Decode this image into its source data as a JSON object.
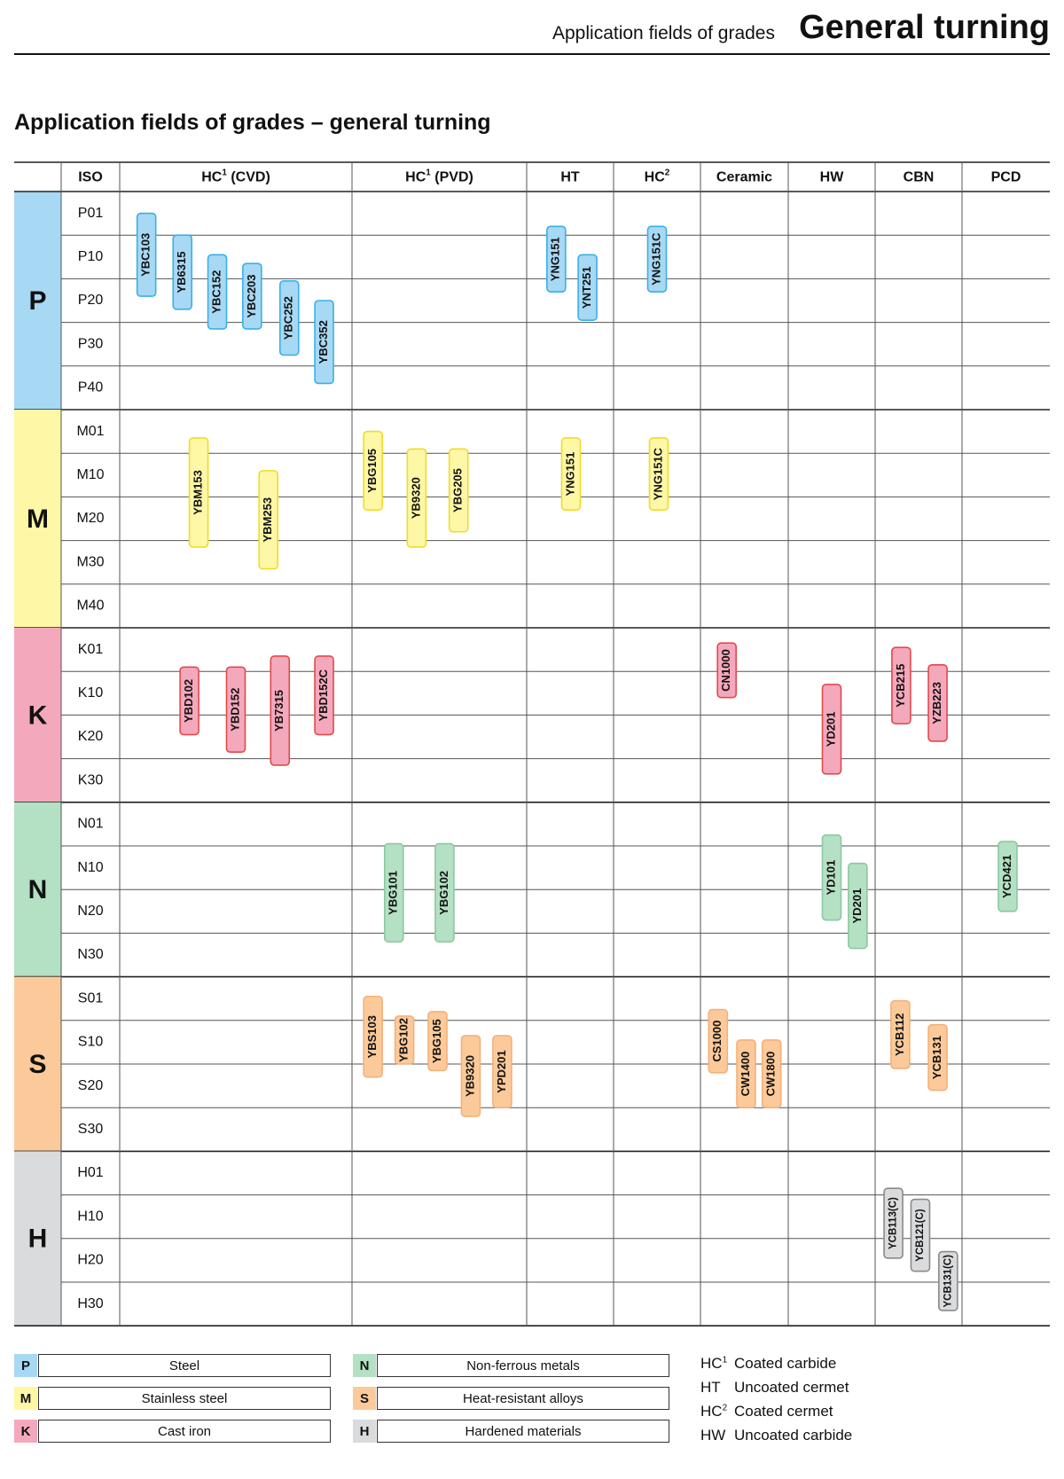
{
  "header": {
    "subtitle": "Application fields of grades",
    "title": "General turning"
  },
  "section_title": "Application fields of grades – general turning",
  "table": {
    "iso_header": "ISO",
    "columns": [
      {
        "base": "HC",
        "sup": "1",
        "suffix": " (CVD)"
      },
      {
        "base": "HC",
        "sup": "1",
        "suffix": " (PVD)"
      },
      {
        "base": "HT",
        "sup": "",
        "suffix": ""
      },
      {
        "base": "HC",
        "sup": "2",
        "suffix": ""
      },
      {
        "base": "Ceramic",
        "sup": "",
        "suffix": ""
      },
      {
        "base": "HW",
        "sup": "",
        "suffix": ""
      },
      {
        "base": "CBN",
        "sup": "",
        "suffix": ""
      },
      {
        "base": "PCD",
        "sup": "",
        "suffix": ""
      }
    ],
    "groups": [
      {
        "code": "P",
        "color": "#a7d8f4",
        "accent": "#3ab0e6",
        "rows": [
          "P01",
          "P10",
          "P20",
          "P30",
          "P40"
        ]
      },
      {
        "code": "M",
        "color": "#fdf7a6",
        "accent": "#f0dc28",
        "rows": [
          "M01",
          "M10",
          "M20",
          "M30",
          "M40"
        ]
      },
      {
        "code": "K",
        "color": "#f4a8bc",
        "accent": "#e04a4a",
        "rows": [
          "K01",
          "K10",
          "K20",
          "K30"
        ]
      },
      {
        "code": "N",
        "color": "#b4e0c4",
        "accent": "#8cc8a0",
        "rows": [
          "N01",
          "N10",
          "N20",
          "N30"
        ]
      },
      {
        "code": "S",
        "color": "#fcca9a",
        "accent": "#f3b07a",
        "rows": [
          "S01",
          "S10",
          "S20",
          "S30"
        ]
      },
      {
        "code": "H",
        "color": "#dadbdd",
        "accent": "#8a8a8a",
        "rows": [
          "H01",
          "H10",
          "H20",
          "H30"
        ]
      }
    ]
  },
  "grades": [
    {
      "label": "YBC103",
      "group": 0,
      "start": 0.5,
      "end": 2.4,
      "col": 0,
      "offset": 0.115
    },
    {
      "label": "YB6315",
      "group": 0,
      "start": 1.0,
      "end": 2.7,
      "col": 0,
      "offset": 0.27
    },
    {
      "label": "YBC152",
      "group": 0,
      "start": 1.45,
      "end": 3.15,
      "col": 0,
      "offset": 0.42
    },
    {
      "label": "YBC203",
      "group": 0,
      "start": 1.65,
      "end": 3.15,
      "col": 0,
      "offset": 0.57
    },
    {
      "label": "YBC252",
      "group": 0,
      "start": 2.05,
      "end": 3.75,
      "col": 0,
      "offset": 0.73
    },
    {
      "label": "YBC352",
      "group": 0,
      "start": 2.5,
      "end": 4.4,
      "col": 0,
      "offset": 0.88
    },
    {
      "label": "YNG151",
      "group": 0,
      "start": 0.8,
      "end": 2.3,
      "col": 2,
      "offset": 0.34
    },
    {
      "label": "YNT251",
      "group": 0,
      "start": 1.45,
      "end": 2.95,
      "col": 2,
      "offset": 0.7
    },
    {
      "label": "YNG151C",
      "group": 0,
      "start": 0.8,
      "end": 2.3,
      "col": 3,
      "offset": 0.5
    },
    {
      "label": "YBM153",
      "group": 1,
      "start": 0.65,
      "end": 3.15,
      "col": 0,
      "offset": 0.34
    },
    {
      "label": "YBM253",
      "group": 1,
      "start": 1.4,
      "end": 3.65,
      "col": 0,
      "offset": 0.64
    },
    {
      "label": "YBG105",
      "group": 1,
      "start": 0.5,
      "end": 2.3,
      "col": 1,
      "offset": 0.12
    },
    {
      "label": "YB9320",
      "group": 1,
      "start": 0.9,
      "end": 3.15,
      "col": 1,
      "offset": 0.37
    },
    {
      "label": "YBG205",
      "group": 1,
      "start": 0.9,
      "end": 2.8,
      "col": 1,
      "offset": 0.61
    },
    {
      "label": "YNG151",
      "group": 1,
      "start": 0.65,
      "end": 2.3,
      "col": 2,
      "offset": 0.51
    },
    {
      "label": "YNG151C",
      "group": 1,
      "start": 0.65,
      "end": 2.3,
      "col": 3,
      "offset": 0.52
    },
    {
      "label": "YBD102",
      "group": 2,
      "start": 0.9,
      "end": 2.45,
      "col": 0,
      "offset": 0.3
    },
    {
      "label": "YBD152",
      "group": 2,
      "start": 0.9,
      "end": 2.85,
      "col": 0,
      "offset": 0.5
    },
    {
      "label": "YB7315",
      "group": 2,
      "start": 0.65,
      "end": 3.15,
      "col": 0,
      "offset": 0.69
    },
    {
      "label": "YBD152C",
      "group": 2,
      "start": 0.65,
      "end": 2.45,
      "col": 0,
      "offset": 0.88
    },
    {
      "label": "CN1000",
      "group": 2,
      "start": 0.35,
      "end": 1.6,
      "col": 4,
      "offset": 0.3
    },
    {
      "label": "YD201",
      "group": 2,
      "start": 1.3,
      "end": 3.35,
      "col": 5,
      "offset": 0.5
    },
    {
      "label": "YCB215",
      "group": 2,
      "start": 0.45,
      "end": 2.2,
      "col": 6,
      "offset": 0.3
    },
    {
      "label": "YZB223",
      "group": 2,
      "start": 0.85,
      "end": 2.6,
      "col": 6,
      "offset": 0.72
    },
    {
      "label": "YBG101",
      "group": 3,
      "start": 0.95,
      "end": 3.2,
      "col": 1,
      "offset": 0.24
    },
    {
      "label": "YBG102",
      "group": 3,
      "start": 0.95,
      "end": 3.2,
      "col": 1,
      "offset": 0.53
    },
    {
      "label": "YD101",
      "group": 3,
      "start": 0.75,
      "end": 2.7,
      "col": 5,
      "offset": 0.5
    },
    {
      "label": "YD201",
      "group": 3,
      "start": 1.4,
      "end": 3.35,
      "col": 5,
      "offset": 0.8
    },
    {
      "label": "YCD421",
      "group": 3,
      "start": 0.9,
      "end": 2.5,
      "col": 7,
      "offset": 0.52
    },
    {
      "label": "YBS103",
      "group": 4,
      "start": 0.45,
      "end": 2.3,
      "col": 1,
      "offset": 0.12
    },
    {
      "label": "YBG102",
      "group": 4,
      "start": 0.9,
      "end": 2.0,
      "col": 1,
      "offset": 0.3
    },
    {
      "label": "YBG105",
      "group": 4,
      "start": 0.8,
      "end": 2.15,
      "col": 1,
      "offset": 0.49
    },
    {
      "label": "YB9320",
      "group": 4,
      "start": 1.35,
      "end": 3.2,
      "col": 1,
      "offset": 0.68
    },
    {
      "label": "YPD201",
      "group": 4,
      "start": 1.35,
      "end": 3.0,
      "col": 1,
      "offset": 0.86
    },
    {
      "label": "CS1000",
      "group": 4,
      "start": 0.75,
      "end": 2.2,
      "col": 4,
      "offset": 0.2
    },
    {
      "label": "CW1400",
      "group": 4,
      "start": 1.45,
      "end": 3.0,
      "col": 4,
      "offset": 0.52
    },
    {
      "label": "CW1800",
      "group": 4,
      "start": 1.45,
      "end": 3.0,
      "col": 4,
      "offset": 0.81
    },
    {
      "label": "YCB112",
      "group": 4,
      "start": 0.55,
      "end": 2.1,
      "col": 6,
      "offset": 0.29
    },
    {
      "label": "YCB131",
      "group": 4,
      "start": 1.1,
      "end": 2.6,
      "col": 6,
      "offset": 0.72
    },
    {
      "label": "YCB113(C)",
      "group": 5,
      "start": 0.85,
      "end": 2.45,
      "col": 6,
      "offset": 0.21
    },
    {
      "label": "YCB121(C)",
      "group": 5,
      "start": 1.1,
      "end": 2.75,
      "col": 6,
      "offset": 0.52
    },
    {
      "label": "YCB131(C)",
      "group": 5,
      "start": 2.3,
      "end": 3.65,
      "col": 6,
      "offset": 0.84
    }
  ],
  "legend": [
    {
      "code": "P",
      "label": "Steel",
      "color": "#a7d8f4"
    },
    {
      "code": "M",
      "label": "Stainless steel",
      "color": "#fdf7a6"
    },
    {
      "code": "K",
      "label": "Cast iron",
      "color": "#f4a8bc"
    },
    {
      "code": "N",
      "label": "Non-ferrous metals",
      "color": "#b4e0c4"
    },
    {
      "code": "S",
      "label": "Heat-resistant alloys",
      "color": "#fcca9a"
    },
    {
      "code": "H",
      "label": "Hardened materials",
      "color": "#dadbdd"
    }
  ],
  "abbreviations": [
    {
      "base": "HC",
      "sup": "1",
      "desc": "Coated carbide"
    },
    {
      "base": "HT",
      "sup": "",
      "desc": "Uncoated cermet"
    },
    {
      "base": "HC",
      "sup": "2",
      "desc": "Coated cermet"
    },
    {
      "base": "HW",
      "sup": "",
      "desc": "Uncoated carbide"
    }
  ]
}
